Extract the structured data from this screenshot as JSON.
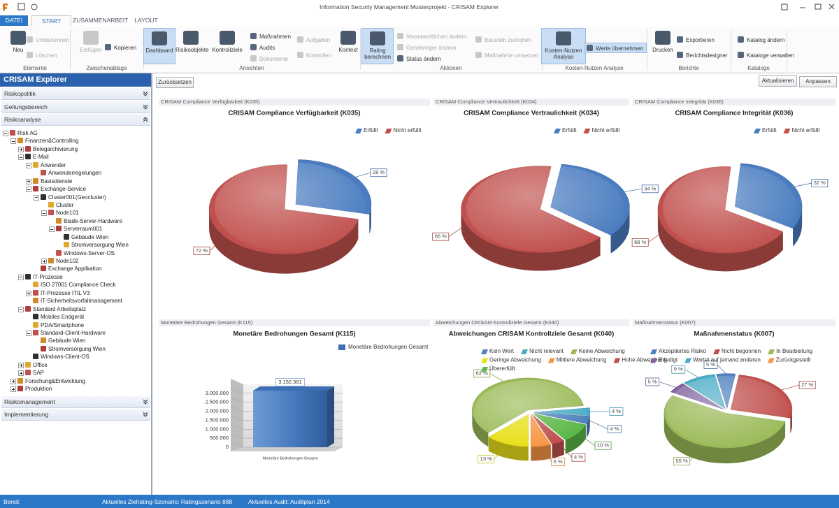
{
  "window": {
    "title": "Information Security Management Musterprojekt - CRISAM Explorer"
  },
  "tabs": {
    "items": [
      "DATEI",
      "START",
      "ZUSAMMENARBEIT",
      "LAYOUT"
    ],
    "selected": 1
  },
  "ribbon": {
    "groups": [
      {
        "label": "Elemente",
        "buttons": [
          {
            "label": "Neu"
          },
          {
            "label": "Umbenennen",
            "disabled": true
          },
          {
            "label": "Löschen",
            "disabled": true
          }
        ]
      },
      {
        "label": "Zwischenablage",
        "buttons": [
          {
            "label": "Einfügen",
            "disabled": true
          },
          {
            "label": "Kopieren"
          }
        ]
      },
      {
        "label": "Ansichten",
        "buttons": [
          {
            "label": "Dashboard",
            "active": true
          },
          {
            "label": "Risikoobjekte"
          },
          {
            "label": "Kontrollziele"
          },
          {
            "label": "Maßnahmen"
          },
          {
            "label": "Audits"
          },
          {
            "label": "Dokumente",
            "disabled": true
          },
          {
            "label": "Aufgaben",
            "disabled": true
          },
          {
            "label": "Kontrollen",
            "disabled": true
          },
          {
            "label": "Kontext"
          }
        ]
      },
      {
        "label": "Aktionen",
        "buttons": [
          {
            "label": "Rating berechnen",
            "active": true
          },
          {
            "label": "Verantwortlichen ändern",
            "disabled": true
          },
          {
            "label": "Genehmiger ändern",
            "disabled": true
          },
          {
            "label": "Status ändern"
          },
          {
            "label": "Bausteln zuordnen",
            "disabled": true
          },
          {
            "label": "Maßnahme umsetzen",
            "disabled": true
          }
        ]
      },
      {
        "label": "Kosten-Nutzen Analyse",
        "buttons": [
          {
            "label": "Kosten-Nutzen Analyse",
            "active": true
          },
          {
            "label": "Werte übernehmen",
            "active": true
          }
        ]
      },
      {
        "label": "Berichte",
        "buttons": [
          {
            "label": "Drucken"
          },
          {
            "label": "Exportieren"
          },
          {
            "label": "Berichtsdesigner"
          }
        ]
      },
      {
        "label": "Kataloge",
        "buttons": [
          {
            "label": "Katalog ändern"
          },
          {
            "label": "Kataloge verwalten"
          }
        ]
      }
    ]
  },
  "explorer": {
    "title": "CRISAM Explorer",
    "sections_top": [
      "Risikopolitik",
      "Geltungsbereich",
      "Risikoanalyse"
    ],
    "tree": {
      "label": "Risk AG",
      "children": [
        {
          "label": "Finanzen&Controlling",
          "children": [
            {
              "label": "Belegarchivierung",
              "children": []
            },
            {
              "label": "E-Mail",
              "children": [
                {
                  "label": "Anwender",
                  "children": [
                    {
                      "label": "Anwenderregelungen"
                    }
                  ]
                },
                {
                  "label": "Basisdienste",
                  "children": []
                },
                {
                  "label": "Exchange-Service",
                  "children": [
                    {
                      "label": "Cluster001(Geocluster)",
                      "children": [
                        {
                          "label": "Cluster"
                        },
                        {
                          "label": "Node101",
                          "children": [
                            {
                              "label": "Blade-Server-Hardware"
                            },
                            {
                              "label": "Serverraum001",
                              "children": [
                                {
                                  "label": "Gebäude Wien"
                                },
                                {
                                  "label": "Stromversorgung Wien"
                                }
                              ]
                            },
                            {
                              "label": "Windows-Server-OS"
                            }
                          ]
                        },
                        {
                          "label": "Node102",
                          "children": []
                        }
                      ]
                    },
                    {
                      "label": "Exchange Applikation"
                    }
                  ]
                }
              ]
            },
            {
              "label": "IT-Prozesse",
              "children": [
                {
                  "label": "ISO 27001 Compliance Check"
                },
                {
                  "label": "IT-Prozesse ITIL V3",
                  "children": []
                },
                {
                  "label": "IT-Sicherheitsvorfallmanagement"
                }
              ]
            },
            {
              "label": "Standard Arbeitsplatz",
              "children": [
                {
                  "label": "Mobiles Endgerät"
                },
                {
                  "label": "PDA/Smartphone"
                },
                {
                  "label": "Standard-Client-Hardware",
                  "children": [
                    {
                      "label": "Gebäude Wien"
                    },
                    {
                      "label": "Stromversorgung Wien"
                    }
                  ]
                },
                {
                  "label": "Windows-Client-OS"
                }
              ]
            },
            {
              "label": "Office",
              "children": []
            },
            {
              "label": "SAP",
              "children": []
            }
          ]
        },
        {
          "label": "Forschung&Entwicklung",
          "children": []
        },
        {
          "label": "Produktion",
          "children": []
        }
      ]
    },
    "sections_bottom": [
      "Risikomanagement",
      "Implementierung"
    ]
  },
  "toolbar": {
    "reset": "Zurücksetzen",
    "refresh": "Aktualisieren",
    "customize": "Anpassen"
  },
  "chart_data": [
    {
      "type": "pie",
      "header": "CRISAM Compliance Verfügbarkeit (K035)",
      "title": "CRISAM Compliance Verfügbarkeit (K035)",
      "categories": [
        "Erfüllt",
        "Nicht erfüllt"
      ],
      "values": [
        28,
        72
      ],
      "value_labels": [
        "28 %",
        "72 %"
      ],
      "colors": [
        "#4a7cc0",
        "#c0504d"
      ]
    },
    {
      "type": "pie",
      "header": "CRISAM Compliance Vertraulichkeit (K034)",
      "title": "CRISAM Compliance Vertraulichkeit (K034)",
      "categories": [
        "Erfüllt",
        "Nicht erfüllt"
      ],
      "values": [
        34,
        66
      ],
      "value_labels": [
        "34 %",
        "66 %"
      ],
      "colors": [
        "#4a7cc0",
        "#c0504d"
      ]
    },
    {
      "type": "pie",
      "header": "CRISAM Compliance Integrität (K036)",
      "title": "CRISAM Compliance Integrität (K036)",
      "categories": [
        "Erfüllt",
        "Nicht erfüllt"
      ],
      "values": [
        32,
        68
      ],
      "value_labels": [
        "32 %",
        "68 %"
      ],
      "colors": [
        "#4a7cc0",
        "#c0504d"
      ]
    },
    {
      "type": "bar",
      "header": "Monetäre Bedrohungen Gesamt (K115)",
      "title": "Monetäre Bedrohungen Gesamt (K115)",
      "categories": [
        "Monetäre Bedrohungen Gesamt"
      ],
      "series": [
        {
          "name": "Monetäre Bedrohungen Gesamt",
          "color": "#3d6fb5",
          "values": [
            3152361
          ],
          "value_labels": [
            "3.152.361"
          ]
        }
      ],
      "ylim": [
        0,
        3500000
      ],
      "yticks": [
        0,
        {
          "value": 500000,
          "label": "500.000"
        },
        {
          "value": 1000000,
          "label": "1.000.000"
        },
        {
          "value": 1500000,
          "label": "1.500.000"
        },
        {
          "value": 2000000,
          "label": "2.000.000"
        },
        {
          "value": 2500000,
          "label": "2.500.000"
        },
        {
          "value": 3000000,
          "label": "3.000.000"
        }
      ],
      "grid": true
    },
    {
      "type": "pie",
      "header": "Abweichungen CRISAM Kontrollziele Gesamt (K040)",
      "title": "Abweichungen CRISAM Kontrollziele Gesamt (K040)",
      "categories": [
        "Kein Wert",
        "Nicht relevant",
        "Keine Abweichung",
        "Geringe Abweichung",
        "Mittlere Abweichung",
        "Hohe Abweichung",
        "Übererfüllt"
      ],
      "values": [
        4,
        4,
        62,
        13,
        6,
        4,
        10
      ],
      "value_labels": [
        "4 %",
        "4 %",
        "62 %",
        "13 %",
        "6 %",
        "4 %",
        "10 %"
      ],
      "colors": [
        "#4f81bd",
        "#4bacc6",
        "#9bbb59",
        "#e8e01a",
        "#f79646",
        "#c0504d",
        "#5cb848"
      ]
    },
    {
      "type": "pie",
      "header": "Maßnahmenstatus (K007)",
      "title": "Maßnahmenstatus (K007)",
      "categories": [
        "Akzeptiertes Risiko",
        "Nicht begonnen",
        "In Bearbeitung",
        "Erledigt",
        "Wartet auf jemand anderen",
        "Zurückgestellt"
      ],
      "values": [
        5,
        27,
        55,
        5,
        9,
        null
      ],
      "value_labels": [
        "5 %",
        "27 %",
        "55 %",
        "5 %",
        "9 %",
        null
      ],
      "colors": [
        "#4f81bd",
        "#c0504d",
        "#9bbb59",
        "#8064a2",
        "#4bacc6",
        "#f79646"
      ]
    }
  ],
  "status_bar": {
    "state": "Bereit",
    "scenario": "Aktuelles Zielrating-Szenario: Ratingszenario 888",
    "audit": "Aktuelles Audit: Auditplan 2014"
  }
}
